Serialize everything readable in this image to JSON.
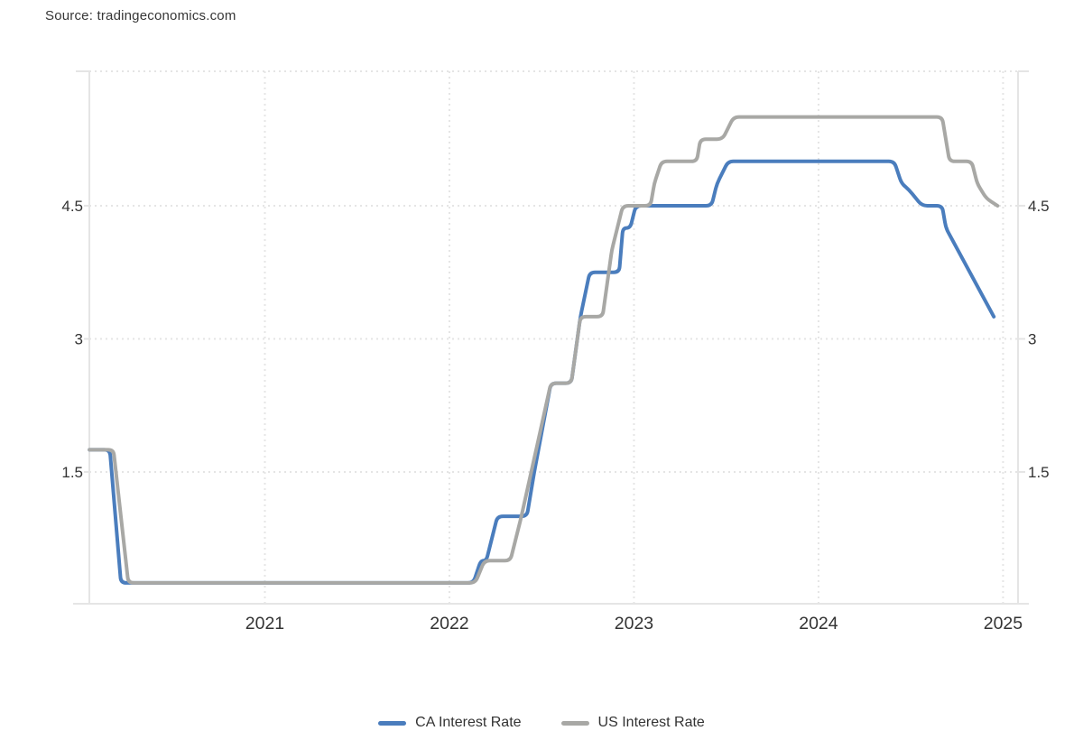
{
  "source": {
    "label": "Source: tradingeconomics.com"
  },
  "chart_data": {
    "type": "line",
    "title": "",
    "x_axis": {
      "range": [
        2020.049,
        2025.081
      ],
      "ticks": [
        {
          "value": 2021,
          "label": "2021"
        },
        {
          "value": 2022,
          "label": "2022"
        },
        {
          "value": 2023,
          "label": "2023"
        },
        {
          "value": 2024,
          "label": "2024"
        },
        {
          "value": 2025,
          "label": "2025"
        }
      ]
    },
    "y_axis": {
      "range": [
        0.015,
        6.015
      ],
      "ticks": [
        {
          "value": 1.5,
          "label": "1.5"
        },
        {
          "value": 3,
          "label": "3"
        },
        {
          "value": 4.5,
          "label": "4.5"
        }
      ],
      "labels_on_both_sides": true
    },
    "grid": {
      "style": "dotted",
      "color": "#e5e5e5"
    },
    "legend_position": "bottom-center",
    "series": [
      {
        "name": "CA Interest Rate",
        "color": "#4a7dbd",
        "points": [
          [
            2020.05,
            1.75
          ],
          [
            2020.16,
            1.75
          ],
          [
            2020.22,
            0.25
          ],
          [
            2022.13,
            0.25
          ],
          [
            2022.17,
            0.5
          ],
          [
            2022.2,
            0.5
          ],
          [
            2022.26,
            1.0
          ],
          [
            2022.42,
            1.0
          ],
          [
            2022.46,
            1.5
          ],
          [
            2022.55,
            2.5
          ],
          [
            2022.66,
            2.5
          ],
          [
            2022.71,
            3.25
          ],
          [
            2022.76,
            3.75
          ],
          [
            2022.92,
            3.75
          ],
          [
            2022.94,
            4.25
          ],
          [
            2022.98,
            4.25
          ],
          [
            2023.01,
            4.5
          ],
          [
            2023.42,
            4.5
          ],
          [
            2023.45,
            4.75
          ],
          [
            2023.51,
            5.0
          ],
          [
            2024.41,
            5.0
          ],
          [
            2024.45,
            4.75
          ],
          [
            2024.49,
            4.68
          ],
          [
            2024.56,
            4.5
          ],
          [
            2024.67,
            4.5
          ],
          [
            2024.69,
            4.25
          ],
          [
            2024.95,
            3.25
          ]
        ]
      },
      {
        "name": "US Interest Rate",
        "color": "#a8a8a5",
        "points": [
          [
            2020.05,
            1.75
          ],
          [
            2020.18,
            1.75
          ],
          [
            2020.26,
            0.25
          ],
          [
            2022.14,
            0.25
          ],
          [
            2022.19,
            0.5
          ],
          [
            2022.33,
            0.5
          ],
          [
            2022.39,
            1.0
          ],
          [
            2022.47,
            1.75
          ],
          [
            2022.55,
            2.5
          ],
          [
            2022.66,
            2.5
          ],
          [
            2022.71,
            3.25
          ],
          [
            2022.83,
            3.25
          ],
          [
            2022.88,
            4.0
          ],
          [
            2022.94,
            4.5
          ],
          [
            2023.09,
            4.5
          ],
          [
            2023.11,
            4.75
          ],
          [
            2023.15,
            5.0
          ],
          [
            2023.34,
            5.0
          ],
          [
            2023.36,
            5.25
          ],
          [
            2023.48,
            5.25
          ],
          [
            2023.54,
            5.5
          ],
          [
            2024.67,
            5.5
          ],
          [
            2024.71,
            5.0
          ],
          [
            2024.83,
            5.0
          ],
          [
            2024.86,
            4.75
          ],
          [
            2024.91,
            4.58
          ],
          [
            2024.97,
            4.5
          ]
        ]
      }
    ]
  }
}
